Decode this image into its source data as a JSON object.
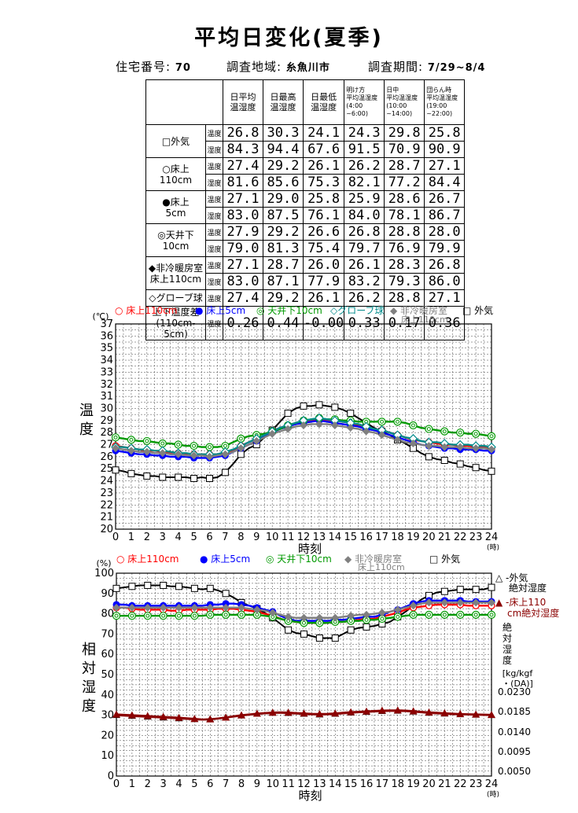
{
  "page": {
    "title": "平均日変化(夏季)",
    "house_label": "住宅番号:",
    "house_no": "70",
    "region_label": "調査地域:",
    "region": "糸魚川市",
    "period_label": "調査期間:",
    "period": "7/29~8/4"
  },
  "summary_table": {
    "headers": [
      "日平均\n温湿度",
      "日最高\n温湿度",
      "日最低\n温湿度",
      "明け方\n平均温湿度\n(4:00\n~6:00)",
      "日中\n平均温湿度\n(10:00\n~14:00)",
      "団らん時\n平均温湿度\n(19:00\n~22:00)"
    ],
    "kind_temp": "温度",
    "kind_hum": "湿度",
    "rows": [
      {
        "location": "□外気",
        "temp": [
          "26.8",
          "30.3",
          "24.1",
          "24.3",
          "29.8",
          "25.8"
        ],
        "hum": [
          "84.3",
          "94.4",
          "67.6",
          "91.5",
          "70.9",
          "90.9"
        ]
      },
      {
        "location": "○床上\n110cm",
        "temp": [
          "27.4",
          "29.2",
          "26.1",
          "26.2",
          "28.7",
          "27.1"
        ],
        "hum": [
          "81.6",
          "85.6",
          "75.3",
          "82.1",
          "77.2",
          "84.4"
        ]
      },
      {
        "location": "●床上\n5cm",
        "temp": [
          "27.1",
          "29.0",
          "25.8",
          "25.9",
          "28.6",
          "26.7"
        ],
        "hum": [
          "83.0",
          "87.5",
          "76.1",
          "84.0",
          "78.1",
          "86.7"
        ]
      },
      {
        "location": "◎天井下\n10cm",
        "temp": [
          "27.9",
          "29.2",
          "26.6",
          "26.8",
          "28.8",
          "28.0"
        ],
        "hum": [
          "79.0",
          "81.3",
          "75.4",
          "79.7",
          "76.9",
          "79.9"
        ]
      },
      {
        "location": "◆非冷暖房室\n床上110cm",
        "temp": [
          "27.1",
          "28.7",
          "26.0",
          "26.1",
          "28.3",
          "26.8"
        ],
        "hum": [
          "83.0",
          "87.1",
          "77.9",
          "83.2",
          "79.3",
          "86.0"
        ]
      },
      {
        "location": "◇グローブ球",
        "kind": "温度",
        "temp": [
          "27.4",
          "29.2",
          "26.1",
          "26.2",
          "28.8",
          "27.1"
        ]
      },
      {
        "location": "上下温度差\n(110cm-5cm)",
        "kind": "温度",
        "temp": [
          "0.26",
          "0.44",
          "-0.00",
          "0.33",
          "0.17",
          "0.36"
        ]
      }
    ]
  },
  "temp_legend": {
    "s1": "○ 床上110cm",
    "s2": "● 床上5cm",
    "s3": "◎ 天井下10cm",
    "s4": "◇グローブ球",
    "s5a": "◆ 非冷暖房室",
    "s5b": "床上110cm",
    "s6": "□ 外気"
  },
  "hum_legend": {
    "s1": "○ 床上110cm",
    "s2": "● 床上5cm",
    "s3": "◎ 天井下10cm",
    "s5a": "◆ 非冷暖房室",
    "s5b": "床上110cm",
    "s6": "□ 外気",
    "abs1a": "△ -外気",
    "abs1b": "絶対湿度",
    "abs2a": "▲ -床上110",
    "abs2b": "cm絶対湿度"
  },
  "colors": {
    "outdoor": "#000000",
    "floor110": "#ff0000",
    "floor5": "#0000ff",
    "ceiling": "#009900",
    "globe": "#008b8b",
    "unheated": "#808080",
    "abs": "#8b0000"
  },
  "chart_data": [
    {
      "type": "line",
      "ylabel": "温度",
      "unit": "(℃)",
      "xlabel": "時刻",
      "x_unit": "(時)",
      "xlim": [
        0,
        24
      ],
      "ylim": [
        20,
        37
      ],
      "grid": true,
      "x": [
        0,
        0.5,
        1,
        1.5,
        2,
        2.5,
        3,
        3.5,
        4,
        4.5,
        5,
        5.5,
        6,
        6.5,
        7,
        7.5,
        8,
        8.5,
        9,
        9.5,
        10,
        10.5,
        11,
        11.5,
        12,
        12.5,
        13,
        13.5,
        14,
        14.5,
        15,
        15.5,
        16,
        16.5,
        17,
        17.5,
        18,
        18.5,
        19,
        19.5,
        20,
        20.5,
        21,
        21.5,
        22,
        22.5,
        23,
        23.5,
        24
      ],
      "series": [
        {
          "name": "外気",
          "key": "outdoor",
          "marker": "square",
          "values": [
            24.9,
            24.8,
            24.6,
            24.5,
            24.4,
            24.4,
            24.3,
            24.3,
            24.3,
            24.3,
            24.2,
            24.3,
            24.2,
            24.3,
            24.7,
            25.4,
            26.2,
            26.7,
            27.0,
            27.6,
            28.2,
            28.9,
            29.6,
            30.0,
            30.2,
            30.2,
            30.3,
            30.2,
            30.1,
            29.9,
            29.6,
            29.2,
            28.8,
            28.4,
            28.1,
            27.8,
            27.4,
            27.1,
            26.7,
            26.3,
            26.0,
            25.8,
            25.7,
            25.5,
            25.4,
            25.2,
            25.1,
            24.9,
            24.8
          ]
        },
        {
          "name": "床上110cm",
          "key": "floor110",
          "marker": "circle",
          "values": [
            26.9,
            26.8,
            26.7,
            26.6,
            26.5,
            26.5,
            26.4,
            26.3,
            26.3,
            26.2,
            26.2,
            26.2,
            26.2,
            26.2,
            26.3,
            26.5,
            26.9,
            27.2,
            27.5,
            27.8,
            28.1,
            28.4,
            28.6,
            28.8,
            28.9,
            29.0,
            29.1,
            29.0,
            29.0,
            28.9,
            28.8,
            28.6,
            28.5,
            28.3,
            28.2,
            28.0,
            27.8,
            27.6,
            27.4,
            27.3,
            27.2,
            27.1,
            27.0,
            27.0,
            26.9,
            26.9,
            26.8,
            26.8,
            26.7
          ]
        },
        {
          "name": "床上5cm",
          "key": "floor5",
          "marker": "dot",
          "values": [
            26.5,
            26.4,
            26.3,
            26.2,
            26.2,
            26.1,
            26.1,
            26.0,
            26.0,
            26.0,
            25.9,
            25.9,
            25.9,
            26.0,
            26.1,
            26.4,
            26.7,
            27.0,
            27.3,
            27.7,
            28.0,
            28.3,
            28.5,
            28.7,
            28.8,
            28.9,
            29.0,
            28.9,
            28.8,
            28.7,
            28.6,
            28.5,
            28.3,
            28.2,
            28.0,
            27.8,
            27.6,
            27.4,
            27.2,
            27.0,
            26.9,
            26.8,
            26.7,
            26.7,
            26.6,
            26.6,
            26.6,
            26.5,
            26.5
          ]
        },
        {
          "name": "天井下10cm",
          "key": "ceiling",
          "marker": "double-circle",
          "values": [
            27.6,
            27.5,
            27.4,
            27.3,
            27.3,
            27.2,
            27.1,
            27.1,
            27.0,
            26.9,
            26.9,
            26.8,
            26.8,
            26.8,
            26.9,
            27.2,
            27.5,
            27.7,
            27.8,
            27.9,
            28.1,
            28.3,
            28.6,
            28.8,
            29.0,
            29.1,
            29.2,
            29.1,
            29.1,
            29.0,
            29.0,
            28.9,
            28.9,
            28.9,
            28.9,
            28.9,
            28.9,
            28.8,
            28.6,
            28.4,
            28.3,
            28.2,
            28.1,
            28.0,
            28.0,
            27.9,
            27.9,
            27.8,
            27.7
          ]
        },
        {
          "name": "グローブ球",
          "key": "globe",
          "marker": "diamond-open",
          "values": [
            26.8,
            26.8,
            26.7,
            26.6,
            26.6,
            26.5,
            26.5,
            26.4,
            26.3,
            26.3,
            26.2,
            26.2,
            26.2,
            26.2,
            26.4,
            26.6,
            26.9,
            27.2,
            27.5,
            27.8,
            28.1,
            28.4,
            28.6,
            28.8,
            29.0,
            29.1,
            29.2,
            29.1,
            29.0,
            28.9,
            28.8,
            28.7,
            28.5,
            28.3,
            28.2,
            28.0,
            27.8,
            27.6,
            27.5,
            27.3,
            27.2,
            27.2,
            27.1,
            27.0,
            27.0,
            27.0,
            26.9,
            26.9,
            26.8
          ]
        },
        {
          "name": "非冷暖房室 床上110cm",
          "key": "unheated",
          "marker": "diamond",
          "values": [
            26.7,
            26.6,
            26.5,
            26.4,
            26.4,
            26.3,
            26.3,
            26.2,
            26.2,
            26.1,
            26.1,
            26.1,
            26.0,
            26.1,
            26.2,
            26.4,
            26.7,
            27.0,
            27.3,
            27.6,
            27.9,
            28.1,
            28.3,
            28.5,
            28.6,
            28.7,
            28.7,
            28.7,
            28.6,
            28.5,
            28.4,
            28.3,
            28.1,
            28.0,
            27.8,
            27.6,
            27.4,
            27.2,
            27.1,
            27.0,
            26.9,
            26.9,
            26.8,
            26.8,
            26.8,
            26.7,
            26.7,
            26.7,
            26.6
          ]
        }
      ]
    },
    {
      "type": "line",
      "ylabel": "相対湿度",
      "unit": "(%)",
      "xlabel": "時刻",
      "x_unit": "(時)",
      "xlim": [
        0,
        24
      ],
      "ylim": [
        0,
        100
      ],
      "grid": true,
      "y2label": "絶対湿度",
      "y2unit": "[kg/kgf\n・(DA)]",
      "y2ticks": [
        "0.0230",
        "0.0185",
        "0.0140",
        "0.0095",
        "0.0050"
      ],
      "x": [
        0,
        0.5,
        1,
        1.5,
        2,
        2.5,
        3,
        3.5,
        4,
        4.5,
        5,
        5.5,
        6,
        6.5,
        7,
        7.5,
        8,
        8.5,
        9,
        9.5,
        10,
        10.5,
        11,
        11.5,
        12,
        12.5,
        13,
        13.5,
        14,
        14.5,
        15,
        15.5,
        16,
        16.5,
        17,
        17.5,
        18,
        18.5,
        19,
        19.5,
        20,
        20.5,
        21,
        21.5,
        22,
        22.5,
        23,
        23.5,
        24
      ],
      "series": [
        {
          "name": "外気",
          "key": "outdoor",
          "marker": "square",
          "values": [
            92.5,
            93,
            93.5,
            94,
            94,
            94,
            94,
            93.5,
            93.5,
            93,
            92.5,
            92,
            92.5,
            91.5,
            90,
            88,
            85.5,
            84,
            82.5,
            80.5,
            78,
            75,
            72,
            70.5,
            70,
            69,
            68,
            68,
            68,
            70,
            72,
            73,
            73.5,
            74,
            75,
            76,
            78.5,
            81,
            84,
            87,
            89,
            90.5,
            91,
            91.5,
            92,
            92,
            92,
            92,
            93
          ]
        },
        {
          "name": "床上110cm",
          "key": "floor110",
          "marker": "circle",
          "values": [
            83,
            83,
            82.5,
            82,
            82,
            82,
            82,
            81.5,
            81.5,
            82,
            82,
            82,
            82,
            82.5,
            82.5,
            82.5,
            82,
            81.5,
            81,
            80,
            79,
            77.5,
            76.5,
            76,
            75.5,
            75.5,
            75.5,
            75.5,
            76,
            76,
            76.5,
            77,
            77.5,
            77.5,
            78.5,
            79.5,
            80.5,
            82,
            83,
            83.5,
            84,
            84.5,
            84.5,
            84.5,
            84.5,
            84,
            84,
            84,
            84
          ]
        },
        {
          "name": "床上5cm",
          "key": "floor5",
          "marker": "dot",
          "values": [
            84.5,
            84.5,
            84,
            84,
            84,
            84,
            84,
            84,
            84,
            84,
            84,
            84,
            84.5,
            84.5,
            85,
            85,
            84.5,
            84,
            83,
            82,
            81,
            79,
            77.5,
            76.5,
            76.5,
            76.5,
            76.5,
            76.5,
            77,
            77,
            77.5,
            78,
            78.5,
            78.5,
            79.5,
            81,
            82,
            83.5,
            85,
            86,
            86.5,
            86.5,
            86.5,
            86.5,
            86.5,
            86,
            86,
            86,
            86
          ]
        },
        {
          "name": "天井下10cm",
          "key": "ceiling",
          "marker": "double-circle",
          "values": [
            79,
            79,
            79,
            79,
            79,
            79,
            79,
            79,
            79,
            79,
            79,
            79,
            79.5,
            79.5,
            79.5,
            79.5,
            79.5,
            79.5,
            79.5,
            79,
            78.5,
            77.5,
            76.5,
            76,
            75.5,
            75.5,
            75.5,
            75.5,
            76,
            76,
            76.5,
            76.5,
            77,
            77,
            77.5,
            78,
            78.5,
            79,
            79.5,
            79.5,
            79.5,
            79.5,
            79.5,
            79.5,
            79.5,
            79.5,
            79.5,
            79.5,
            79.5
          ]
        },
        {
          "name": "非冷暖房室 床上110cm",
          "key": "unheated",
          "marker": "diamond",
          "values": [
            83,
            83,
            83,
            83,
            83,
            83,
            83,
            83,
            83,
            83,
            83,
            83,
            83,
            83,
            83,
            83,
            83,
            82.5,
            82,
            81.5,
            80.5,
            79.5,
            78.5,
            78,
            78,
            78,
            78,
            78,
            78,
            78.5,
            79,
            79.5,
            79.5,
            80,
            80.5,
            81,
            82,
            83,
            84,
            85,
            85.5,
            85.5,
            85.5,
            85.5,
            85.5,
            85.5,
            85.5,
            85.5,
            85.5
          ]
        },
        {
          "name": "外気 絶対湿度",
          "key": "abs",
          "marker": "triangle-open",
          "axis": "right",
          "values": [
            30,
            29.8,
            29.6,
            29.4,
            29.2,
            29,
            28.8,
            28.6,
            28.4,
            28.2,
            28,
            27.8,
            28,
            28.3,
            28.8,
            29.3,
            29.8,
            30.2,
            30.6,
            30.9,
            31.1,
            31.2,
            31,
            30.8,
            30.6,
            30.4,
            30.3,
            30.4,
            30.6,
            30.9,
            31.2,
            31.4,
            31.6,
            31.8,
            32,
            32.1,
            32.1,
            32,
            31.7,
            31.4,
            31.1,
            30.9,
            30.7,
            30.5,
            30.4,
            30.3,
            30.2,
            30.1,
            30
          ]
        },
        {
          "name": "床上110cm 絶対湿度",
          "key": "abs",
          "marker": "triangle",
          "axis": "right",
          "values": [
            30.4,
            30.2,
            30,
            29.8,
            29.6,
            29.4,
            29.2,
            29,
            28.8,
            28.5,
            28.2,
            27.9,
            28,
            28.4,
            28.9,
            29.5,
            30,
            30.4,
            30.8,
            31.1,
            31.3,
            31.4,
            31.3,
            31.1,
            30.9,
            30.7,
            30.6,
            30.7,
            30.9,
            31.2,
            31.5,
            31.7,
            31.9,
            32.1,
            32.3,
            32.4,
            32.4,
            32.3,
            32,
            31.7,
            31.4,
            31.2,
            31,
            30.8,
            30.6,
            30.5,
            30.4,
            30.3,
            30.2
          ]
        }
      ]
    }
  ]
}
